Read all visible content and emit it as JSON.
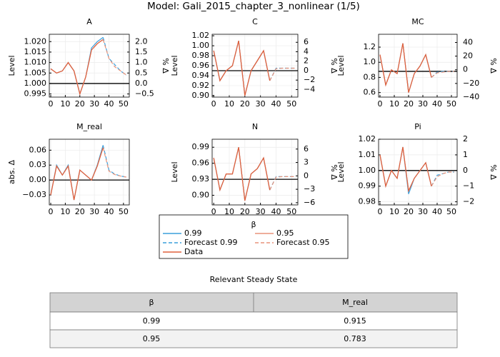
{
  "title": "Model: Gali_2015_chapter_3_nonlinear  (1/5)",
  "legend_title": "β",
  "chart_data": [
    {
      "type": "line",
      "title": "A",
      "ylabel": "Level",
      "y2label": "% Δ",
      "grid": true,
      "x": [
        0,
        4,
        8,
        12,
        16,
        20,
        24,
        28,
        32,
        36,
        40,
        44,
        48,
        52
      ],
      "xlim": [
        -1,
        54
      ],
      "xticks": [
        0,
        10,
        20,
        30,
        40,
        50
      ],
      "ylim": [
        0.9935,
        1.0235
      ],
      "yticks": [
        0.995,
        {
          "value": 1,
          "label": "1.000"
        },
        1.005,
        {
          "value": 1.01,
          "label": "1.010"
        },
        1.015,
        {
          "value": 1.02,
          "label": "1.020"
        }
      ],
      "y2lim": [
        -0.65,
        2.35
      ],
      "y2ticks": [
        {
          "value": -0.5,
          "label": "−0.5"
        },
        {
          "value": 0,
          "label": "0.0"
        },
        0.5,
        {
          "value": 1,
          "label": "1.0"
        },
        1.5,
        {
          "value": 2,
          "label": "2.0"
        }
      ],
      "reference_line": 1,
      "series": [
        {
          "name": "0.99",
          "color": "#3a9fdc",
          "dashed": false,
          "values": [
            1.007,
            1.005,
            1.006,
            1.01,
            1.006,
            0.995,
            1.003,
            1.017,
            1.02,
            1.022,
            null,
            null,
            null,
            null
          ]
        },
        {
          "name": "0.95",
          "color": "#e8937a",
          "dashed": false,
          "values": [
            1.007,
            1.005,
            1.006,
            1.01,
            1.006,
            0.995,
            1.003,
            1.016,
            1.019,
            1.021,
            null,
            null,
            null,
            null
          ]
        },
        {
          "name": "Forecast 0.99",
          "color": "#3a9fdc",
          "dashed": true,
          "values": [
            null,
            null,
            null,
            null,
            null,
            null,
            null,
            null,
            null,
            1.022,
            1.012,
            1.009,
            1.006,
            1.004
          ]
        },
        {
          "name": "Forecast 0.95",
          "color": "#e8937a",
          "dashed": true,
          "values": [
            null,
            null,
            null,
            null,
            null,
            null,
            null,
            null,
            null,
            1.021,
            1.012,
            1.008,
            1.006,
            1.004
          ]
        },
        {
          "name": "Data",
          "color": "#e0603c",
          "dashed": false,
          "values": [
            1.007,
            1.005,
            1.006,
            1.01,
            1.006,
            0.995,
            1.003,
            1.016,
            1.019,
            1.021,
            null,
            null,
            null,
            null
          ]
        }
      ]
    },
    {
      "type": "line",
      "title": "C",
      "ylabel": "Level",
      "y2label": "% Δ",
      "grid": true,
      "x": [
        0,
        4,
        8,
        12,
        16,
        20,
        24,
        28,
        32,
        36,
        40,
        44,
        48,
        52
      ],
      "xlim": [
        -1,
        54
      ],
      "xticks": [
        0,
        10,
        20,
        30,
        40,
        50
      ],
      "ylim": [
        0.897,
        1.023
      ],
      "yticks": [
        {
          "value": 0.9,
          "label": "0.90"
        },
        0.92,
        0.94,
        0.96,
        0.98,
        {
          "value": 1,
          "label": "1.00"
        },
        1.02
      ],
      "y2lim": [
        -5.6,
        7.7
      ],
      "y2ticks": [
        {
          "value": -4,
          "label": "−4"
        },
        {
          "value": -2,
          "label": "−2"
        },
        0,
        2,
        4,
        6
      ],
      "reference_line": 0.95,
      "series": [
        {
          "name": "0.99",
          "color": "#3a9fdc",
          "dashed": false,
          "values": [
            0.99,
            0.93,
            0.95,
            0.96,
            1.01,
            0.9,
            0.95,
            0.97,
            0.99,
            0.93,
            null,
            null,
            null,
            null
          ]
        },
        {
          "name": "0.95",
          "color": "#e8937a",
          "dashed": false,
          "values": [
            0.99,
            0.93,
            0.95,
            0.96,
            1.01,
            0.9,
            0.95,
            0.97,
            0.99,
            0.93,
            null,
            null,
            null,
            null
          ]
        },
        {
          "name": "Forecast 0.99",
          "color": "#3a9fdc",
          "dashed": true,
          "values": [
            null,
            null,
            null,
            null,
            null,
            null,
            null,
            null,
            null,
            0.93,
            0.955,
            0.955,
            0.955,
            0.955
          ]
        },
        {
          "name": "Forecast 0.95",
          "color": "#e8937a",
          "dashed": true,
          "values": [
            null,
            null,
            null,
            null,
            null,
            null,
            null,
            null,
            null,
            0.93,
            0.954,
            0.955,
            0.955,
            0.955
          ]
        },
        {
          "name": "Data",
          "color": "#e0603c",
          "dashed": false,
          "values": [
            0.99,
            0.93,
            0.95,
            0.96,
            1.01,
            0.9,
            0.95,
            0.97,
            0.99,
            0.93,
            null,
            null,
            null,
            null
          ]
        }
      ]
    },
    {
      "type": "line",
      "title": "MC",
      "ylabel": "Level",
      "y2label": "% Δ",
      "grid": true,
      "x": [
        0,
        4,
        8,
        12,
        16,
        20,
        24,
        28,
        32,
        36,
        40,
        44,
        48,
        52
      ],
      "xlim": [
        -1,
        54
      ],
      "xticks": [
        0,
        10,
        20,
        30,
        40,
        50
      ],
      "ylim": [
        0.54,
        1.37
      ],
      "yticks": [
        0.6,
        0.8,
        {
          "value": 1,
          "label": "1.0"
        },
        1.2
      ],
      "y2lim": [
        -40,
        52
      ],
      "y2ticks": [
        {
          "value": -40,
          "label": "−40"
        },
        {
          "value": -20,
          "label": "−20"
        },
        0,
        20,
        40
      ],
      "reference_line": 0.88,
      "series": [
        {
          "name": "0.99",
          "color": "#3a9fdc",
          "dashed": false,
          "values": [
            1.1,
            0.7,
            0.9,
            0.85,
            1.25,
            0.6,
            0.85,
            0.95,
            1.1,
            0.8,
            null,
            null,
            null,
            null
          ]
        },
        {
          "name": "0.95",
          "color": "#e8937a",
          "dashed": false,
          "values": [
            1.1,
            0.7,
            0.9,
            0.85,
            1.25,
            0.6,
            0.85,
            0.95,
            1.1,
            0.8,
            null,
            null,
            null,
            null
          ]
        },
        {
          "name": "Forecast 0.99",
          "color": "#3a9fdc",
          "dashed": true,
          "values": [
            null,
            null,
            null,
            null,
            null,
            null,
            null,
            null,
            null,
            0.8,
            0.87,
            0.88,
            0.88,
            0.88
          ]
        },
        {
          "name": "Forecast 0.95",
          "color": "#e8937a",
          "dashed": true,
          "values": [
            null,
            null,
            null,
            null,
            null,
            null,
            null,
            null,
            null,
            0.8,
            0.86,
            0.87,
            0.88,
            0.88
          ]
        },
        {
          "name": "Data",
          "color": "#e0603c",
          "dashed": false,
          "values": [
            1.1,
            0.7,
            0.9,
            0.85,
            1.25,
            0.6,
            0.85,
            0.95,
            1.1,
            0.8,
            null,
            null,
            null,
            null
          ]
        }
      ]
    },
    {
      "type": "line",
      "title": "M_real",
      "ylabel": "abs. Δ",
      "grid": true,
      "x": [
        0,
        4,
        8,
        12,
        16,
        20,
        24,
        28,
        32,
        36,
        40,
        44,
        48,
        52
      ],
      "xlim": [
        -1,
        54
      ],
      "xticks": [
        0,
        10,
        20,
        30,
        40,
        50
      ],
      "ylim": [
        -0.05,
        0.082
      ],
      "yticks": [
        {
          "value": -0.03,
          "label": "−0.03"
        },
        {
          "value": 0,
          "label": "0.00"
        },
        0.03,
        0.06
      ],
      "reference_line": 0,
      "series": [
        {
          "name": "0.99",
          "color": "#3a9fdc",
          "dashed": false,
          "values": [
            -0.03,
            0.03,
            0.01,
            0.03,
            -0.04,
            0.02,
            0.01,
            0,
            0.03,
            0.07,
            null,
            null,
            null,
            null
          ]
        },
        {
          "name": "0.95",
          "color": "#e8937a",
          "dashed": false,
          "values": [
            -0.03,
            0.028,
            0.01,
            0.028,
            -0.04,
            0.02,
            0.01,
            0,
            0.028,
            0.065,
            null,
            null,
            null,
            null
          ]
        },
        {
          "name": "Forecast 0.99",
          "color": "#3a9fdc",
          "dashed": true,
          "values": [
            null,
            null,
            null,
            null,
            null,
            null,
            null,
            null,
            null,
            0.07,
            0.02,
            0.012,
            0.008,
            0.006
          ]
        },
        {
          "name": "Forecast 0.95",
          "color": "#e8937a",
          "dashed": true,
          "values": [
            null,
            null,
            null,
            null,
            null,
            null,
            null,
            null,
            null,
            0.065,
            0.018,
            0.011,
            0.008,
            0.006
          ]
        },
        {
          "name": "Data",
          "color": "#e0603c",
          "dashed": false,
          "values": [
            -0.03,
            0.028,
            0.01,
            0.028,
            -0.04,
            0.02,
            0.01,
            0,
            0.028,
            0.065,
            null,
            null,
            null,
            null
          ]
        }
      ]
    },
    {
      "type": "line",
      "title": "N",
      "ylabel": "Level",
      "y2label": "% Δ",
      "grid": true,
      "x": [
        0,
        4,
        8,
        12,
        16,
        20,
        24,
        28,
        32,
        36,
        40,
        44,
        48,
        52
      ],
      "xlim": [
        -1,
        54
      ],
      "xticks": [
        0,
        10,
        20,
        30,
        40,
        50
      ],
      "ylim": [
        0.882,
        1.005
      ],
      "yticks": [
        {
          "value": 0.9,
          "label": "0.90"
        },
        0.93,
        0.96,
        0.99
      ],
      "y2lim": [
        -6.5,
        8.2
      ],
      "y2ticks": [
        {
          "value": -6,
          "label": "−6"
        },
        {
          "value": -3,
          "label": "−3"
        },
        0,
        3,
        6
      ],
      "reference_line": 0.93,
      "series": [
        {
          "name": "0.99",
          "color": "#3a9fdc",
          "dashed": false,
          "values": [
            0.97,
            0.91,
            0.94,
            0.94,
            0.99,
            0.89,
            0.94,
            0.95,
            0.97,
            0.91,
            null,
            null,
            null,
            null
          ]
        },
        {
          "name": "0.95",
          "color": "#e8937a",
          "dashed": false,
          "values": [
            0.97,
            0.91,
            0.94,
            0.94,
            0.99,
            0.89,
            0.94,
            0.95,
            0.97,
            0.91,
            null,
            null,
            null,
            null
          ]
        },
        {
          "name": "Forecast 0.99",
          "color": "#3a9fdc",
          "dashed": true,
          "values": [
            null,
            null,
            null,
            null,
            null,
            null,
            null,
            null,
            null,
            0.91,
            0.935,
            0.935,
            0.935,
            0.935
          ]
        },
        {
          "name": "Forecast 0.95",
          "color": "#e8937a",
          "dashed": true,
          "values": [
            null,
            null,
            null,
            null,
            null,
            null,
            null,
            null,
            null,
            0.91,
            0.934,
            0.935,
            0.935,
            0.935
          ]
        },
        {
          "name": "Data",
          "color": "#e0603c",
          "dashed": false,
          "values": [
            0.97,
            0.91,
            0.94,
            0.94,
            0.99,
            0.89,
            0.94,
            0.95,
            0.97,
            0.91,
            null,
            null,
            null,
            null
          ]
        }
      ]
    },
    {
      "type": "line",
      "title": "Pi",
      "ylabel": "Level",
      "y2label": "% Δ",
      "grid": true,
      "x": [
        0,
        4,
        8,
        12,
        16,
        20,
        24,
        28,
        32,
        36,
        40,
        44,
        48,
        52
      ],
      "xlim": [
        -1,
        54
      ],
      "xticks": [
        0,
        10,
        20,
        30,
        40,
        50
      ],
      "ylim": [
        0.978,
        1.02
      ],
      "yticks": [
        0.98,
        0.99,
        {
          "value": 1,
          "label": "1.00"
        },
        1.01,
        1.02
      ],
      "y2lim": [
        -2.2,
        2
      ],
      "y2ticks": [
        {
          "value": -2,
          "label": "−2"
        },
        {
          "value": -1,
          "label": "−1"
        },
        0,
        1,
        2
      ],
      "reference_line": 1,
      "series": [
        {
          "name": "0.99",
          "color": "#3a9fdc",
          "dashed": false,
          "values": [
            1.01,
            0.99,
            1.0,
            0.995,
            1.015,
            0.985,
            0.995,
            1.0,
            1.005,
            0.99,
            null,
            null,
            null,
            null
          ]
        },
        {
          "name": "0.95",
          "color": "#e8937a",
          "dashed": false,
          "values": [
            1.01,
            0.99,
            1.0,
            0.995,
            1.015,
            0.987,
            0.995,
            1.0,
            1.005,
            0.99,
            null,
            null,
            null,
            null
          ]
        },
        {
          "name": "Forecast 0.99",
          "color": "#3a9fdc",
          "dashed": true,
          "values": [
            null,
            null,
            null,
            null,
            null,
            null,
            null,
            null,
            null,
            0.99,
            0.997,
            0.998,
            0.999,
            0.999
          ]
        },
        {
          "name": "Forecast 0.95",
          "color": "#e8937a",
          "dashed": true,
          "values": [
            null,
            null,
            null,
            null,
            null,
            null,
            null,
            null,
            null,
            0.99,
            0.996,
            0.998,
            0.999,
            0.999
          ]
        },
        {
          "name": "Data",
          "color": "#e0603c",
          "dashed": false,
          "values": [
            1.01,
            0.99,
            1.0,
            0.995,
            1.015,
            0.987,
            0.995,
            1.0,
            1.005,
            0.99,
            null,
            null,
            null,
            null
          ]
        }
      ]
    }
  ],
  "table": {
    "title": "Relevant Steady State",
    "header": [
      "β",
      "M_real"
    ],
    "rows": [
      [
        "0.99",
        "0.915"
      ],
      [
        "0.95",
        "0.783"
      ]
    ]
  }
}
